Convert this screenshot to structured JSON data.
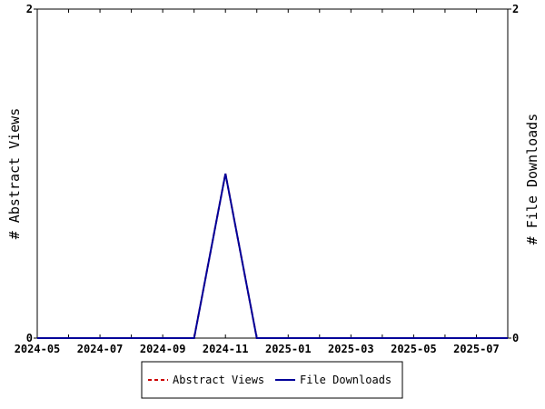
{
  "chart_data": {
    "type": "line",
    "x": [
      "2024-05",
      "2024-06",
      "2024-07",
      "2024-08",
      "2024-09",
      "2024-10",
      "2024-11",
      "2024-12",
      "2025-01",
      "2025-02",
      "2025-03",
      "2025-04",
      "2025-05",
      "2025-06",
      "2025-07",
      "2025-08"
    ],
    "x_tick_labels": [
      "2024-05",
      "2024-07",
      "2024-09",
      "2024-11",
      "2025-01",
      "2025-03",
      "2025-05",
      "2025-07"
    ],
    "series": [
      {
        "name": "Abstract Views",
        "axis": "left",
        "color": "#cc0000",
        "style": "dashed",
        "values": [
          0,
          0,
          0,
          0,
          0,
          0,
          1,
          0,
          0,
          0,
          0,
          0,
          0,
          0,
          0,
          0
        ]
      },
      {
        "name": "File Downloads",
        "axis": "right",
        "color": "#000099",
        "style": "solid",
        "values": [
          0,
          0,
          0,
          0,
          0,
          0,
          1,
          0,
          0,
          0,
          0,
          0,
          0,
          0,
          0,
          0
        ]
      }
    ],
    "ylabel_left": "# Abstract Views",
    "ylabel_right": "# File Downloads",
    "ylim_left": [
      0,
      2
    ],
    "ylim_right": [
      0,
      2
    ],
    "y_ticks_left": [
      "0",
      "2"
    ],
    "y_ticks_right": [
      "0",
      "2"
    ],
    "grid": false,
    "legend_position": "bottom-center"
  }
}
